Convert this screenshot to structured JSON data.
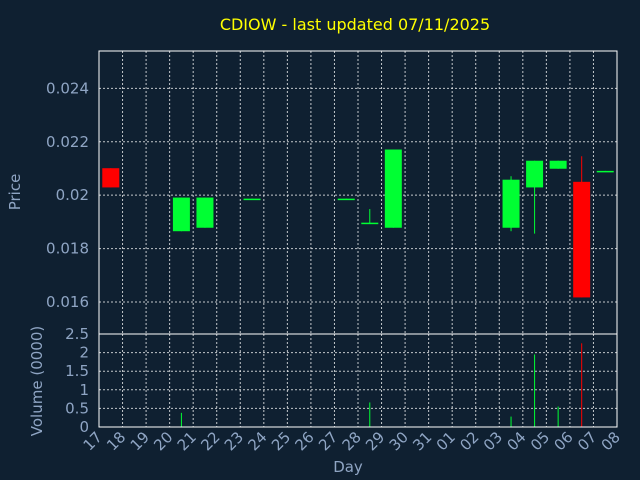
{
  "chart_data": {
    "type": "candlestick",
    "title": "CDIOW - last updated 07/11/2025",
    "xlabel": "Day",
    "ylabel_price": "Price",
    "ylabel_volume": "Volume (0000)",
    "x_ticks": [
      "17",
      "18",
      "19",
      "20",
      "21",
      "22",
      "23",
      "24",
      "25",
      "26",
      "27",
      "28",
      "29",
      "30",
      "31",
      "01",
      "02",
      "03",
      "04",
      "05",
      "06",
      "07",
      "08"
    ],
    "price_ylim": [
      0.0148,
      0.0254
    ],
    "price_ticks": [
      "0.016",
      "0.018",
      "0.02",
      "0.022",
      "0.024"
    ],
    "volume_ylim": [
      0,
      2.5
    ],
    "volume_ticks": [
      "0",
      "0.5",
      "1",
      "1.5",
      "2",
      "2.5"
    ],
    "grid": true,
    "colors": {
      "background": "#0f2031",
      "up": "#00ff33",
      "down": "#ff0000",
      "title": "#ffff00",
      "axis_text": "#8fa5c4",
      "frame": "#ffffff"
    },
    "candles": [
      {
        "day": "17",
        "open": 0.02101,
        "close": 0.02029,
        "high": 0.02101,
        "low": 0.02029,
        "volume": 0.0
      },
      {
        "day": "20",
        "open": 0.01865,
        "close": 0.01991,
        "high": 0.01991,
        "low": 0.01865,
        "volume": 0.38
      },
      {
        "day": "21",
        "open": 0.01878,
        "close": 0.01991,
        "high": 0.01991,
        "low": 0.01878,
        "volume": 0.0
      },
      {
        "day": "23",
        "open": 0.01983,
        "close": 0.01987,
        "high": 0.01987,
        "low": 0.01983,
        "volume": 0.0
      },
      {
        "day": "27",
        "open": 0.01983,
        "close": 0.01987,
        "high": 0.01987,
        "low": 0.01983,
        "volume": 0.0
      },
      {
        "day": "28",
        "open": 0.01893,
        "close": 0.01897,
        "high": 0.01948,
        "low": 0.01893,
        "volume": 0.66
      },
      {
        "day": "29",
        "open": 0.01878,
        "close": 0.02171,
        "high": 0.02171,
        "low": 0.01878,
        "volume": 0.0
      },
      {
        "day": "03",
        "open": 0.01878,
        "close": 0.02058,
        "high": 0.02071,
        "low": 0.01865,
        "volume": 0.28
      },
      {
        "day": "04",
        "open": 0.02029,
        "close": 0.02129,
        "high": 0.02129,
        "low": 0.01856,
        "volume": 1.95
      },
      {
        "day": "05",
        "open": 0.02099,
        "close": 0.02129,
        "high": 0.02129,
        "low": 0.02099,
        "volume": 0.55
      },
      {
        "day": "06",
        "open": 0.0205,
        "close": 0.01617,
        "high": 0.02146,
        "low": 0.01617,
        "volume": 2.25
      },
      {
        "day": "07",
        "open": 0.02087,
        "close": 0.02091,
        "high": 0.02091,
        "low": 0.02087,
        "volume": 0.0
      }
    ]
  }
}
